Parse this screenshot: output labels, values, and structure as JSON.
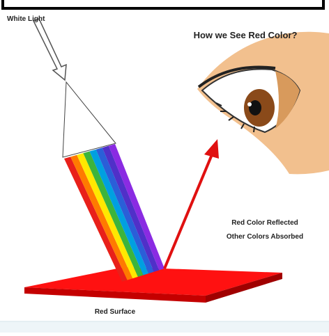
{
  "labels": {
    "white_light": "White Light",
    "title": "How we See Red Color?",
    "reflected": "Red Color Reflected",
    "absorbed": "Other Colors Absorbed",
    "surface": "Red Surface"
  }
}
